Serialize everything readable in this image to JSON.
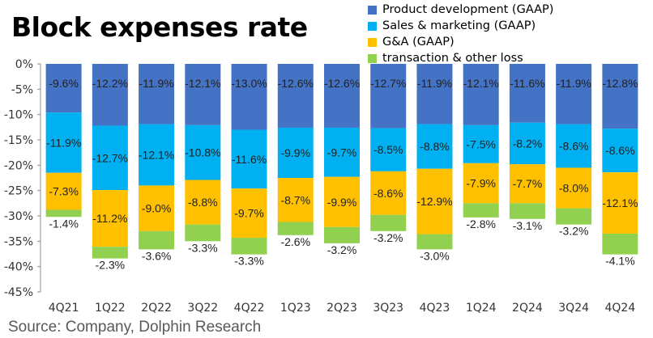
{
  "title": "Block expenses rate",
  "source": "Source: Company, Dolphin Research",
  "chart_data": {
    "type": "bar",
    "stacked": true,
    "title": "Block expenses rate",
    "categories": [
      "4Q21",
      "1Q22",
      "2Q22",
      "3Q22",
      "4Q22",
      "1Q23",
      "2Q23",
      "3Q23",
      "4Q23",
      "1Q24",
      "2Q24",
      "3Q24",
      "4Q24"
    ],
    "series": [
      {
        "name": "Product development (GAAP)",
        "color": "#4472C4",
        "values": [
          -9.6,
          -12.2,
          -11.9,
          -12.1,
          -13.0,
          -12.6,
          -12.6,
          -12.7,
          -11.9,
          -12.1,
          -11.6,
          -11.9,
          -12.8
        ]
      },
      {
        "name": "Sales & marketing (GAAP)",
        "color": "#00B0F0",
        "values": [
          -11.9,
          -12.7,
          -12.1,
          -10.8,
          -11.6,
          -9.9,
          -9.7,
          -8.5,
          -8.8,
          -7.5,
          -8.2,
          -8.6,
          -8.6
        ]
      },
      {
        "name": "G&A (GAAP)",
        "color": "#FFC000",
        "values": [
          -7.3,
          -11.2,
          -9.0,
          -8.8,
          -9.7,
          -8.7,
          -9.9,
          -8.6,
          -12.9,
          -7.9,
          -7.7,
          -8.0,
          -12.1
        ]
      },
      {
        "name": "transaction & other loss",
        "color": "#92D050",
        "values": [
          -1.4,
          -2.3,
          -3.6,
          -3.3,
          -3.3,
          -2.6,
          -3.2,
          -3.2,
          -3.0,
          -2.8,
          -3.1,
          -3.2,
          -4.1
        ]
      }
    ],
    "data_labels": [
      [
        "-9.6%",
        "-12.2%",
        "-11.9%",
        "-12.1%",
        "-13.0%",
        "-12.6%",
        "-12.6%",
        "-12.7%",
        "-11.9%",
        "-12.1%",
        "-11.6%",
        "-11.9%",
        "-12.8%"
      ],
      [
        "-11.9%",
        "-12.7%",
        "-12.1%",
        "-10.8%",
        "-11.6%",
        "-9.9%",
        "-9.7%",
        "-8.5%",
        "-8.8%",
        "-7.5%",
        "-8.2%",
        "-8.6%",
        "-8.6%"
      ],
      [
        "-7.3%",
        "-11.2%",
        "-9.0%",
        "-8.8%",
        "-9.7%",
        "-8.7%",
        "-9.9%",
        "-8.6%",
        "-12.9%",
        "-7.9%",
        "-7.7%",
        "-8.0%",
        "-12.1%"
      ],
      [
        "-1.4%",
        "-2.3%",
        "-3.6%",
        "-3.3%",
        "-3.3%",
        "-2.6%",
        "-3.2%",
        "-3.2%",
        "-3.0%",
        "-2.8%",
        "-3.1%",
        "-3.2%",
        "-4.1%"
      ]
    ],
    "y_ticks": [
      "0%",
      "-5%",
      "-10%",
      "-15%",
      "-20%",
      "-25%",
      "-30%",
      "-35%",
      "-40%",
      "-45%"
    ],
    "ylim": [
      -45,
      0
    ],
    "xlabel": "",
    "ylabel": "",
    "grid": false,
    "legend_position": "top-right"
  }
}
